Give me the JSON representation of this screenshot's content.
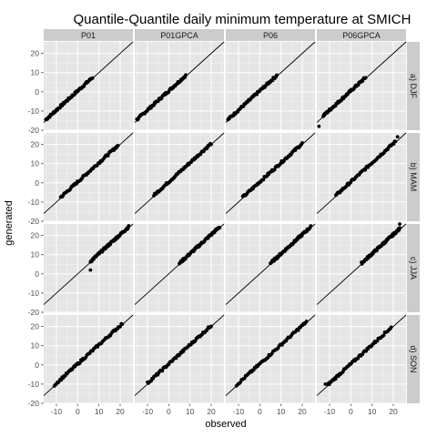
{
  "chart_data": {
    "type": "scatter",
    "title": "Quantile-Quantile daily minimum temperature at SMICH",
    "xlabel": "observed",
    "ylabel": "generated",
    "columns": [
      "P01",
      "P01GPCA",
      "P06",
      "P06GPCA"
    ],
    "rows": [
      "a) DJF",
      "b) MAM",
      "c) JJA",
      "d) SON"
    ],
    "xlim": [
      -16,
      26
    ],
    "ylim": [
      -20,
      26
    ],
    "x_ticks": [
      -10,
      0,
      10,
      20
    ],
    "y_ticks": [
      -20,
      -10,
      0,
      10,
      20
    ],
    "reference_line": "y = x",
    "grid": true,
    "panel_background": "#e5e5e5",
    "strip_background": "#cccccc",
    "point_color": "#000000",
    "panels": [
      {
        "row": "a) DJF",
        "column": "P01",
        "x_range": [
          -15,
          7
        ],
        "offset": 0.5,
        "outliers": []
      },
      {
        "row": "a) DJF",
        "column": "P01GPCA",
        "x_range": [
          -15,
          8
        ],
        "offset": 0.5,
        "outliers": []
      },
      {
        "row": "a) DJF",
        "column": "P06",
        "x_range": [
          -15,
          8
        ],
        "offset": 0.5,
        "outliers": []
      },
      {
        "row": "a) DJF",
        "column": "P06GPCA",
        "x_range": [
          -13,
          7
        ],
        "offset": 0.5,
        "outliers": [
          {
            "x": -15,
            "y": -18
          }
        ]
      },
      {
        "row": "b) MAM",
        "column": "P01",
        "x_range": [
          -8,
          19
        ],
        "offset": 0.5,
        "outliers": []
      },
      {
        "row": "b) MAM",
        "column": "P01GPCA",
        "x_range": [
          -7,
          20
        ],
        "offset": 0.5,
        "outliers": []
      },
      {
        "row": "b) MAM",
        "column": "P06",
        "x_range": [
          -8,
          20
        ],
        "offset": 0.5,
        "outliers": []
      },
      {
        "row": "b) MAM",
        "column": "P06GPCA",
        "x_range": [
          -7,
          21
        ],
        "offset": 0.5,
        "outliers": [
          {
            "x": 22,
            "y": 24
          }
        ]
      },
      {
        "row": "c) JJA",
        "column": "P01",
        "x_range": [
          6,
          24
        ],
        "offset": 0.5,
        "outliers": [
          {
            "x": 6,
            "y": 2
          }
        ]
      },
      {
        "row": "c) JJA",
        "column": "P01GPCA",
        "x_range": [
          5,
          24
        ],
        "offset": 0.5,
        "outliers": []
      },
      {
        "row": "c) JJA",
        "column": "P06",
        "x_range": [
          5,
          24
        ],
        "offset": 0.5,
        "outliers": []
      },
      {
        "row": "c) JJA",
        "column": "P06GPCA",
        "x_range": [
          5,
          23
        ],
        "offset": 0.5,
        "outliers": [
          {
            "x": 23,
            "y": 26
          }
        ]
      },
      {
        "row": "d) SON",
        "column": "P01",
        "x_range": [
          -11,
          21
        ],
        "offset": 0.5,
        "outliers": []
      },
      {
        "row": "d) SON",
        "column": "P01GPCA",
        "x_range": [
          -10,
          20
        ],
        "offset": 0.5,
        "outliers": []
      },
      {
        "row": "d) SON",
        "column": "P06",
        "x_range": [
          -11,
          22
        ],
        "offset": 0.5,
        "outliers": []
      },
      {
        "row": "d) SON",
        "column": "P06GPCA",
        "x_range": [
          -11,
          19
        ],
        "offset": 0.5,
        "outliers": [
          {
            "x": -12,
            "y": -10
          }
        ]
      }
    ]
  }
}
